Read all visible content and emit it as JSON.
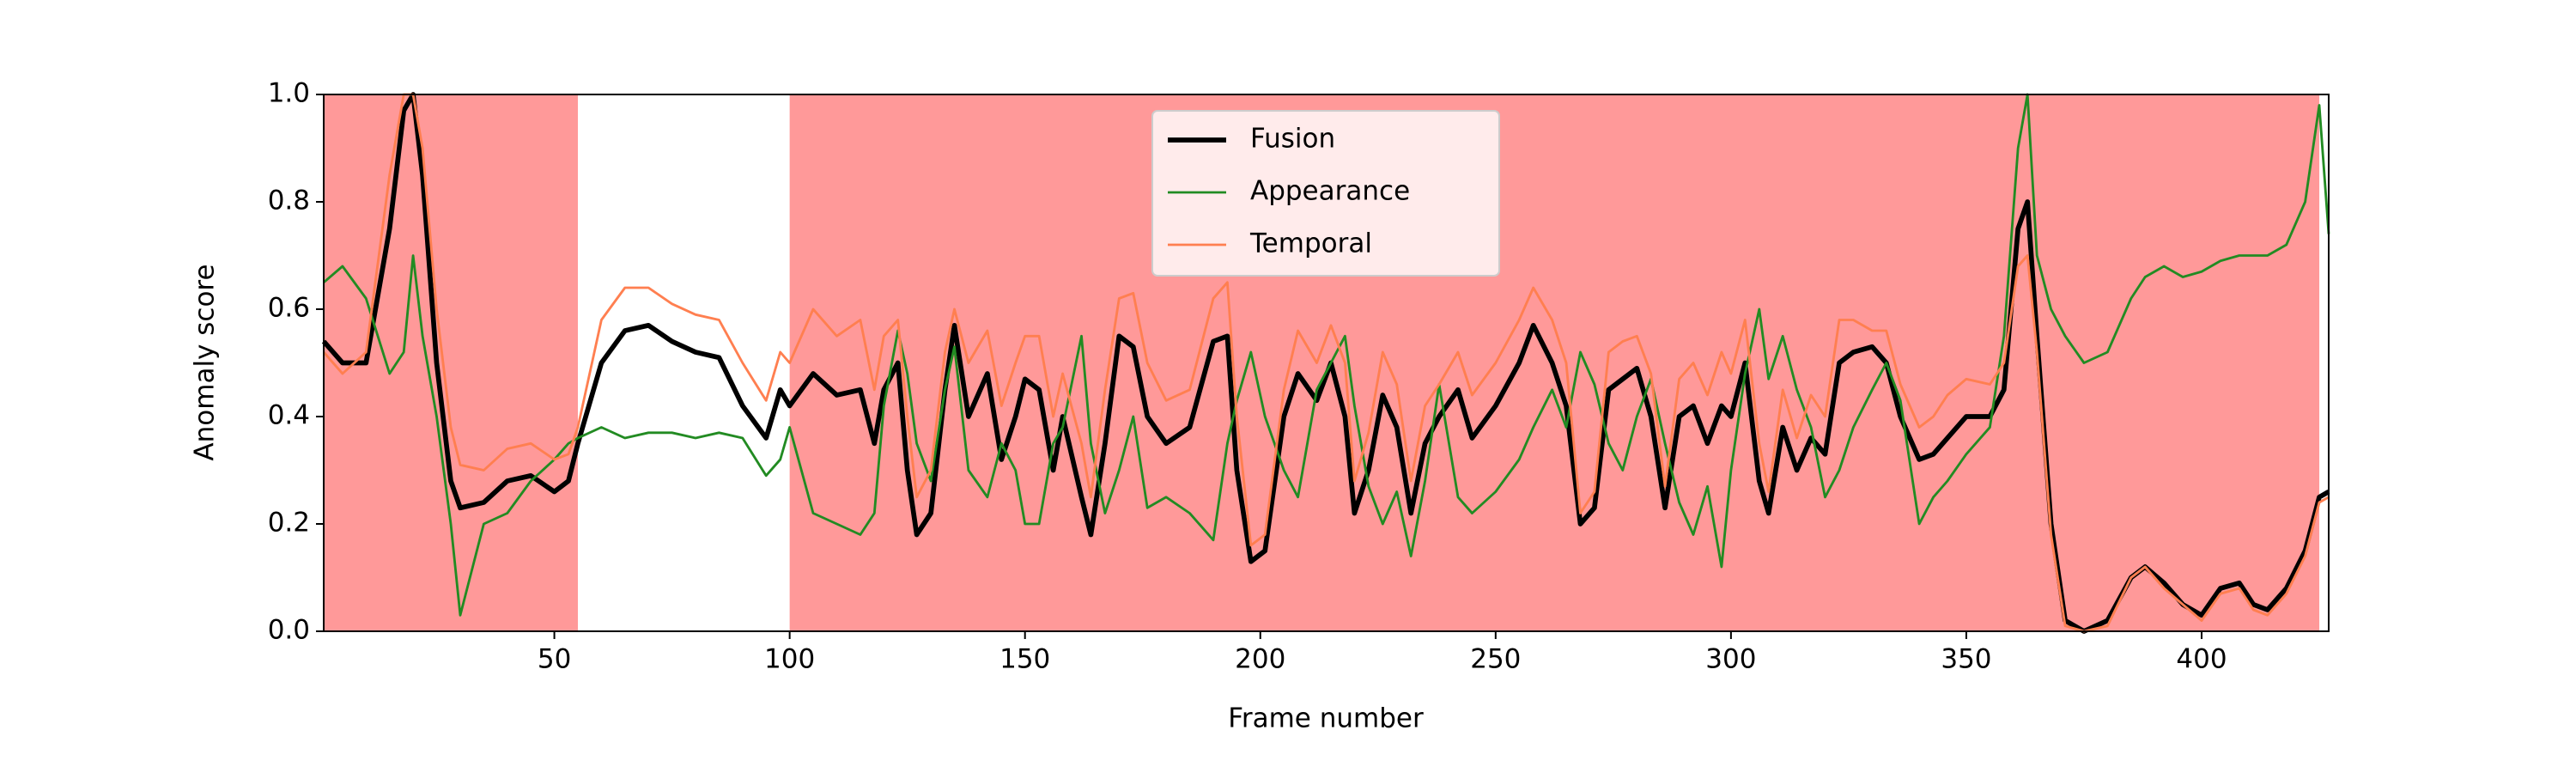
{
  "chart_data": {
    "type": "line",
    "xlabel": "Frame number",
    "ylabel": "Anomaly score",
    "xlim": [
      1,
      427
    ],
    "ylim": [
      0,
      1
    ],
    "xticks": [
      50,
      100,
      150,
      200,
      250,
      300,
      350,
      400
    ],
    "yticks": [
      {
        "value": 0,
        "label": "0.0"
      },
      0.2,
      0.4,
      0.6,
      0.8,
      {
        "value": 1,
        "label": "1.0"
      }
    ],
    "spans": [
      {
        "start": 1,
        "end": 55
      },
      {
        "start": 100,
        "end": 425
      }
    ],
    "span_color": "#ff9999",
    "legend": "upper center",
    "x": [
      1,
      5,
      10,
      15,
      18,
      20,
      22,
      25,
      28,
      30,
      35,
      40,
      45,
      50,
      53,
      55,
      60,
      65,
      70,
      75,
      80,
      85,
      90,
      95,
      98,
      100,
      105,
      110,
      115,
      118,
      120,
      123,
      125,
      127,
      130,
      133,
      135,
      138,
      142,
      145,
      148,
      150,
      153,
      156,
      158,
      162,
      164,
      167,
      170,
      173,
      176,
      180,
      185,
      190,
      193,
      195,
      198,
      201,
      205,
      208,
      212,
      215,
      218,
      220,
      223,
      226,
      229,
      232,
      235,
      238,
      242,
      245,
      250,
      255,
      258,
      262,
      265,
      268,
      271,
      274,
      277,
      280,
      283,
      286,
      289,
      292,
      295,
      298,
      300,
      303,
      306,
      308,
      311,
      314,
      317,
      320,
      323,
      326,
      330,
      333,
      336,
      340,
      343,
      346,
      350,
      355,
      358,
      361,
      363,
      365,
      368,
      371,
      375,
      380,
      385,
      388,
      392,
      396,
      400,
      404,
      408,
      411,
      414,
      418,
      422,
      425,
      427
    ],
    "series": [
      {
        "name": "Fusion",
        "color": "#000000",
        "width": 3,
        "values": [
          0.54,
          0.5,
          0.5,
          0.75,
          0.97,
          1.0,
          0.85,
          0.5,
          0.28,
          0.23,
          0.24,
          0.28,
          0.29,
          0.26,
          0.28,
          0.35,
          0.5,
          0.56,
          0.57,
          0.54,
          0.52,
          0.51,
          0.42,
          0.36,
          0.45,
          0.42,
          0.48,
          0.44,
          0.45,
          0.35,
          0.45,
          0.5,
          0.3,
          0.18,
          0.22,
          0.45,
          0.57,
          0.4,
          0.48,
          0.32,
          0.4,
          0.47,
          0.45,
          0.3,
          0.4,
          0.25,
          0.18,
          0.35,
          0.55,
          0.53,
          0.4,
          0.35,
          0.38,
          0.54,
          0.55,
          0.3,
          0.13,
          0.15,
          0.4,
          0.48,
          0.43,
          0.5,
          0.4,
          0.22,
          0.3,
          0.44,
          0.38,
          0.22,
          0.35,
          0.4,
          0.45,
          0.36,
          0.42,
          0.5,
          0.57,
          0.5,
          0.42,
          0.2,
          0.23,
          0.45,
          0.47,
          0.49,
          0.4,
          0.23,
          0.4,
          0.42,
          0.35,
          0.42,
          0.4,
          0.5,
          0.28,
          0.22,
          0.38,
          0.3,
          0.36,
          0.33,
          0.5,
          0.52,
          0.53,
          0.5,
          0.4,
          0.32,
          0.33,
          0.36,
          0.4,
          0.4,
          0.45,
          0.75,
          0.8,
          0.55,
          0.2,
          0.02,
          0.0,
          0.02,
          0.1,
          0.12,
          0.09,
          0.05,
          0.03,
          0.08,
          0.09,
          0.05,
          0.04,
          0.08,
          0.15,
          0.25,
          0.26
        ]
      },
      {
        "name": "Appearance",
        "color": "#228b22",
        "width": 1.5,
        "values": [
          0.65,
          0.68,
          0.62,
          0.48,
          0.52,
          0.7,
          0.55,
          0.4,
          0.2,
          0.03,
          0.2,
          0.22,
          0.28,
          0.32,
          0.35,
          0.36,
          0.38,
          0.36,
          0.37,
          0.37,
          0.36,
          0.37,
          0.36,
          0.29,
          0.32,
          0.38,
          0.22,
          0.2,
          0.18,
          0.22,
          0.42,
          0.56,
          0.48,
          0.35,
          0.28,
          0.45,
          0.53,
          0.3,
          0.25,
          0.35,
          0.3,
          0.2,
          0.2,
          0.35,
          0.38,
          0.55,
          0.35,
          0.22,
          0.3,
          0.4,
          0.23,
          0.25,
          0.22,
          0.17,
          0.35,
          0.43,
          0.52,
          0.4,
          0.3,
          0.25,
          0.45,
          0.5,
          0.55,
          0.42,
          0.27,
          0.2,
          0.26,
          0.14,
          0.28,
          0.46,
          0.25,
          0.22,
          0.26,
          0.32,
          0.38,
          0.45,
          0.38,
          0.52,
          0.46,
          0.35,
          0.3,
          0.4,
          0.47,
          0.35,
          0.24,
          0.18,
          0.27,
          0.12,
          0.3,
          0.48,
          0.6,
          0.47,
          0.55,
          0.45,
          0.38,
          0.25,
          0.3,
          0.38,
          0.45,
          0.5,
          0.43,
          0.2,
          0.25,
          0.28,
          0.33,
          0.38,
          0.55,
          0.9,
          1.0,
          0.7,
          0.6,
          0.55,
          0.5,
          0.52,
          0.62,
          0.66,
          0.68,
          0.66,
          0.67,
          0.69,
          0.7,
          0.7,
          0.7,
          0.72,
          0.8,
          0.98,
          0.74
        ]
      },
      {
        "name": "Temporal",
        "color": "#ff7f50",
        "width": 1.5,
        "values": [
          0.52,
          0.48,
          0.52,
          0.85,
          1.0,
          1.0,
          0.9,
          0.6,
          0.38,
          0.31,
          0.3,
          0.34,
          0.35,
          0.32,
          0.33,
          0.38,
          0.58,
          0.64,
          0.64,
          0.61,
          0.59,
          0.58,
          0.5,
          0.43,
          0.52,
          0.5,
          0.6,
          0.55,
          0.58,
          0.45,
          0.55,
          0.58,
          0.4,
          0.25,
          0.3,
          0.52,
          0.6,
          0.5,
          0.56,
          0.42,
          0.5,
          0.55,
          0.55,
          0.4,
          0.48,
          0.35,
          0.25,
          0.45,
          0.62,
          0.63,
          0.5,
          0.43,
          0.45,
          0.62,
          0.65,
          0.4,
          0.16,
          0.18,
          0.45,
          0.56,
          0.5,
          0.57,
          0.5,
          0.28,
          0.37,
          0.52,
          0.46,
          0.28,
          0.42,
          0.46,
          0.52,
          0.44,
          0.5,
          0.58,
          0.64,
          0.58,
          0.5,
          0.22,
          0.26,
          0.52,
          0.54,
          0.55,
          0.48,
          0.27,
          0.47,
          0.5,
          0.44,
          0.52,
          0.48,
          0.58,
          0.35,
          0.26,
          0.45,
          0.36,
          0.44,
          0.4,
          0.58,
          0.58,
          0.56,
          0.56,
          0.46,
          0.38,
          0.4,
          0.44,
          0.47,
          0.46,
          0.5,
          0.68,
          0.7,
          0.52,
          0.18,
          0.01,
          0.0,
          0.01,
          0.1,
          0.12,
          0.08,
          0.05,
          0.02,
          0.07,
          0.08,
          0.04,
          0.03,
          0.07,
          0.14,
          0.24,
          0.25
        ]
      }
    ]
  }
}
